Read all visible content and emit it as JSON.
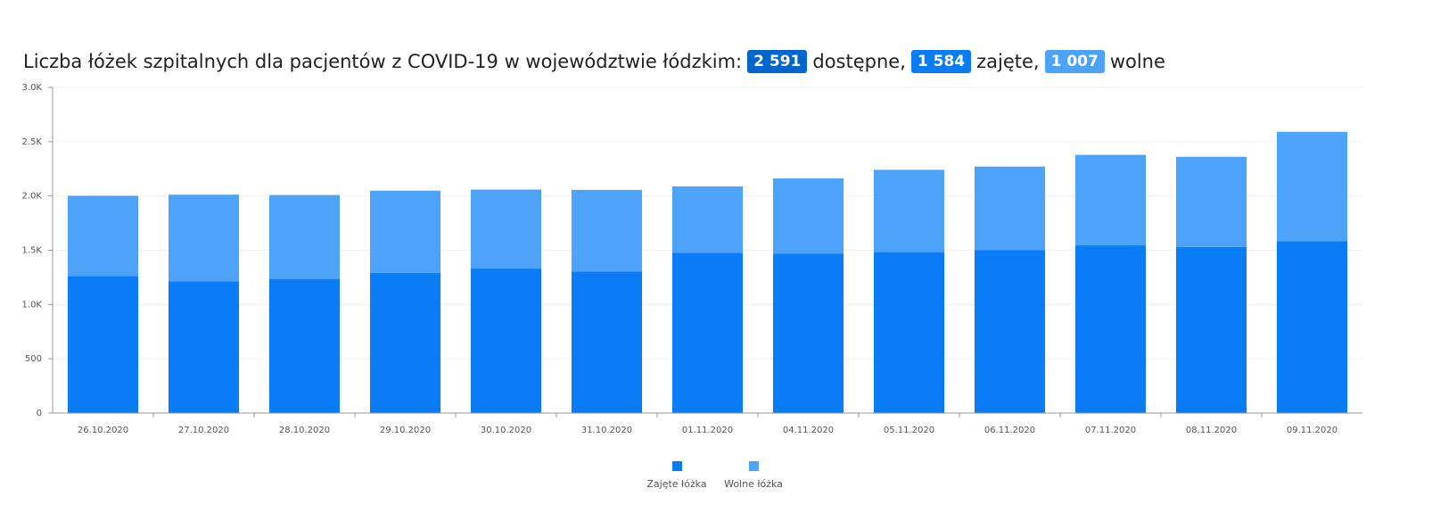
{
  "header": {
    "title_prefix": "Liczba łóżek szpitalnych dla pacjentów z COVID-19 w województwie łódzkim:",
    "available_value": "2 591",
    "available_label": "dostępne,",
    "occupied_value": "1 584",
    "occupied_label": "zajęte,",
    "free_value": "1 007",
    "free_label": "wolne",
    "badge_colors": {
      "available": "#0066CC",
      "occupied": "#0A7CF5",
      "free": "#4DA3F7"
    }
  },
  "chart_data": {
    "type": "bar",
    "stacked": true,
    "categories": [
      "26.10.2020",
      "27.10.2020",
      "28.10.2020",
      "29.10.2020",
      "30.10.2020",
      "31.10.2020",
      "01.11.2020",
      "04.11.2020",
      "05.11.2020",
      "06.11.2020",
      "07.11.2020",
      "08.11.2020",
      "09.11.2020"
    ],
    "series": [
      {
        "name": "Zajęte łóżka",
        "color": "#0A7CF5",
        "values": [
          1263,
          1214,
          1236,
          1292,
          1331,
          1303,
          1477,
          1470,
          1485,
          1500,
          1545,
          1530,
          1584
        ]
      },
      {
        "name": "Wolne łóżka",
        "color": "#4DA3F7",
        "values": [
          739,
          798,
          773,
          757,
          728,
          753,
          611,
          692,
          756,
          771,
          834,
          831,
          1007
        ]
      }
    ],
    "ylim": [
      0,
      3000
    ],
    "yticks": [
      {
        "value": 0,
        "label": "0"
      },
      {
        "value": 500,
        "label": "500"
      },
      {
        "value": 1000,
        "label": "1.0K"
      },
      {
        "value": 1500,
        "label": "1.5K"
      },
      {
        "value": 2000,
        "label": "2.0K"
      },
      {
        "value": 2500,
        "label": "2.5K"
      },
      {
        "value": 3000,
        "label": "3.0K"
      }
    ],
    "grid": true,
    "legend_position": "bottom-center"
  }
}
